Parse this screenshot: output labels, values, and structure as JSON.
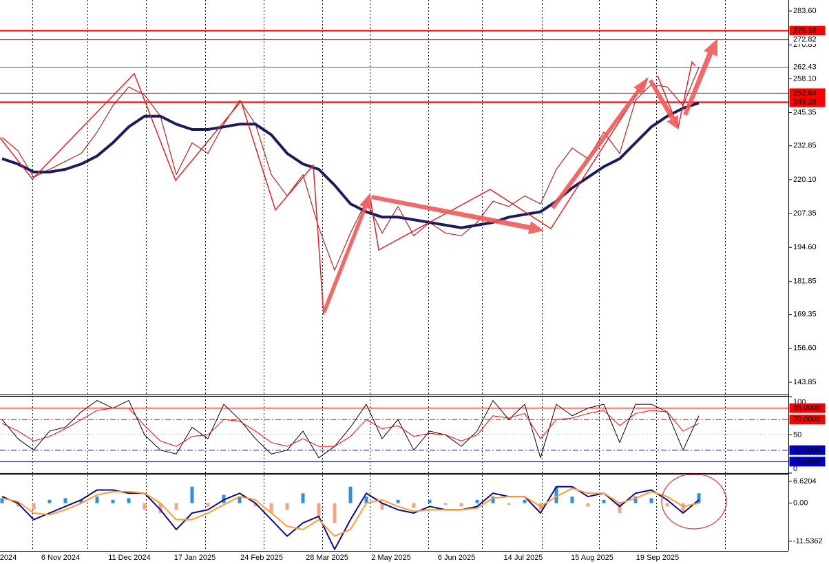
{
  "chart_data": [
    {
      "type": "line",
      "x_labels": [
        "2024",
        "6 Nov 2024",
        "11 Dec 2024",
        "17 Jan 2025",
        "24 Feb 2025",
        "28 Mar 2025",
        "2 May 2025",
        "6 Jun 2025",
        "14 Jul 2025",
        "15 Aug 2025",
        "19 Sep 2025"
      ],
      "series": [
        {
          "color": "#b22222",
          "width": 1.2,
          "values": [
            236,
            231,
            221,
            224,
            227,
            230,
            238,
            248,
            255,
            252,
            244,
            222,
            234,
            230,
            241,
            250,
            241,
            222,
            214,
            222,
            202,
            186,
            200,
            212,
            200,
            210,
            199,
            204,
            200,
            199,
            204,
            212,
            210,
            214,
            211,
            224,
            232,
            228,
            238,
            230,
            250,
            256,
            255,
            248,
            262.43
          ]
        },
        {
          "color": "#1c1c5c",
          "width": 4,
          "values": [
            228,
            226,
            223,
            223,
            224,
            226,
            229,
            234,
            240,
            244,
            244,
            241,
            239,
            239,
            240,
            241,
            241,
            237,
            230,
            226,
            224,
            218,
            211,
            208,
            206,
            206,
            205,
            204,
            203,
            202,
            203,
            204,
            206,
            207,
            208,
            212,
            217,
            221,
            225,
            228,
            234,
            240,
            244,
            247,
            249
          ]
        }
      ],
      "ylim": [
        139.44,
        287.75
      ],
      "yticks": [
        {
          "value": 283.6,
          "label": "283.60"
        },
        270.85,
        {
          "value": 258.1,
          "label": "258.10"
        },
        245.35,
        232.85,
        {
          "value": 220.1,
          "label": "220.10"
        },
        207.35,
        {
          "value": 194.6,
          "label": "194.60"
        },
        181.85,
        169.35,
        {
          "value": 156.6,
          "label": "156.60"
        },
        143.85
      ],
      "levels": [
        {
          "value": 276.18,
          "color": "#ff0000",
          "label_background": "#ff0000"
        },
        {
          "value": 272.82,
          "color": "#ff0000",
          "label_background": "#ffffff"
        },
        {
          "value": 262.43,
          "color": "#3050c0",
          "label_background": "#ffffff"
        },
        {
          "value": 252.64,
          "color": "#ff0000",
          "label_background": "#ff0000"
        },
        {
          "value": 249.28,
          "color": "#ff0000",
          "label_background": "#ff0000"
        }
      ]
    },
    {
      "type": "line",
      "series": [
        {
          "color": "#000000",
          "width": 1,
          "values": [
            70,
            45,
            30,
            55,
            60,
            80,
            95,
            85,
            95,
            50,
            30,
            25,
            60,
            45,
            90,
            70,
            45,
            25,
            30,
            55,
            20,
            35,
            60,
            90,
            45,
            70,
            30,
            55,
            50,
            35,
            55,
            95,
            70,
            90,
            20,
            90,
            75,
            85,
            90,
            40,
            90,
            90,
            80,
            30,
            75
          ]
        },
        {
          "color": "#ff0000",
          "width": 1,
          "values": [
            65,
            55,
            42,
            48,
            58,
            70,
            82,
            85,
            85,
            62,
            42,
            35,
            48,
            50,
            70,
            68,
            55,
            40,
            35,
            45,
            35,
            35,
            48,
            70,
            58,
            62,
            48,
            52,
            50,
            42,
            50,
            75,
            72,
            78,
            45,
            70,
            72,
            78,
            82,
            62,
            78,
            82,
            80,
            55,
            65
          ]
        }
      ],
      "ylim": [
        0,
        100
      ],
      "yticks": [
        100,
        50,
        0
      ],
      "levels": [
        {
          "value": 85,
          "label": "85.0000",
          "color": "#ff0000",
          "style": "solid",
          "label_background": "#ff0000"
        },
        {
          "value": 70,
          "label": "70.0000",
          "color": "#ff0000",
          "style": "dashdot",
          "label_background": "#ff0000"
        },
        {
          "value": 30,
          "label": "30.0000",
          "color": "#0000cc",
          "style": "dashdot",
          "label_background": "#0000cc"
        },
        {
          "value": 15,
          "label": "15.0000",
          "color": "#0000cc",
          "style": "solid",
          "label_background": "#0000cc"
        }
      ]
    },
    {
      "type": "combo",
      "series": [
        {
          "type": "bar",
          "color": "#2f8fdc",
          "negative_color": "#f4a582",
          "values": [
            1.5,
            -1,
            -2,
            1,
            1.5,
            1,
            2,
            1,
            1.5,
            -2,
            -3,
            -2,
            5,
            -1,
            2.5,
            2,
            -1,
            -3,
            -2,
            3,
            -4,
            -6,
            5,
            2,
            -2,
            1,
            -1.5,
            1,
            -0.5,
            -1,
            1,
            2,
            -0.5,
            1,
            -2,
            5,
            2,
            -1,
            1,
            -3,
            2,
            1.5,
            -1,
            -3,
            3
          ]
        },
        {
          "type": "line",
          "color": "#0a0a8c",
          "width": 2,
          "values": [
            2,
            0,
            -5,
            -3,
            -1,
            1,
            4,
            4,
            3,
            3,
            -2,
            -8,
            -3,
            -2,
            1,
            3,
            0,
            -5,
            -10,
            -6,
            -4,
            -14,
            -5,
            3,
            0,
            -2,
            -3,
            -1,
            -2,
            -2,
            -1,
            3,
            2,
            2,
            -3,
            5,
            5,
            2,
            3,
            -1,
            3,
            4,
            1,
            -3,
            1
          ]
        },
        {
          "type": "line",
          "color": "#ff9a2e",
          "width": 2,
          "values": [
            1.5,
            0.5,
            -3,
            -3.5,
            -2,
            0,
            2.5,
            3.5,
            3.5,
            3,
            0,
            -5,
            -5,
            -3,
            -0.5,
            2,
            1,
            -3,
            -7,
            -8,
            -5,
            -10,
            -8,
            0,
            1,
            -1,
            -2.5,
            -2,
            -2,
            -2,
            -1.5,
            1.5,
            2,
            2,
            -1,
            2,
            4.5,
            3,
            3,
            0,
            1.5,
            3.5,
            2,
            -1,
            0
          ]
        }
      ],
      "ylim": [
        -14.49,
        8.49
      ],
      "yticks": [
        6.6204,
        {
          "value": 0,
          "label": "0.00"
        },
        -11.5362
      ]
    }
  ]
}
